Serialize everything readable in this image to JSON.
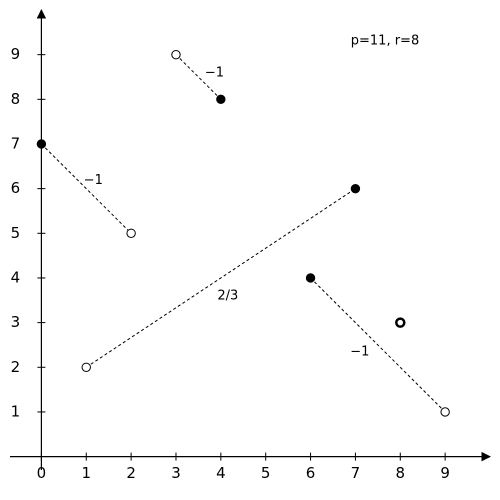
{
  "chart_data": {
    "type": "segments",
    "annotation": "p=11, r=8",
    "xlim": [
      -0.7,
      10
    ],
    "ylim": [
      -0.3,
      10
    ],
    "xticks": [
      0,
      1,
      2,
      3,
      4,
      5,
      6,
      7,
      8,
      9
    ],
    "yticks": [
      1,
      2,
      3,
      4,
      5,
      6,
      7,
      8,
      9
    ],
    "segments": [
      {
        "points": [
          [
            3,
            9
          ],
          [
            4,
            8
          ]
        ],
        "filled": [
          false,
          true
        ],
        "label": "−1"
      },
      {
        "points": [
          [
            0,
            7
          ],
          [
            2,
            5
          ]
        ],
        "filled": [
          true,
          false
        ],
        "label": "−1"
      },
      {
        "points": [
          [
            1,
            2
          ],
          [
            7,
            6
          ]
        ],
        "filled": [
          false,
          true
        ],
        "label": "2/3"
      },
      {
        "points": [
          [
            6,
            4
          ],
          [
            9,
            1
          ]
        ],
        "filled": [
          true,
          false
        ],
        "label": "−1"
      }
    ],
    "points": [
      {
        "x": 8,
        "y": 3,
        "filled": false
      }
    ]
  }
}
